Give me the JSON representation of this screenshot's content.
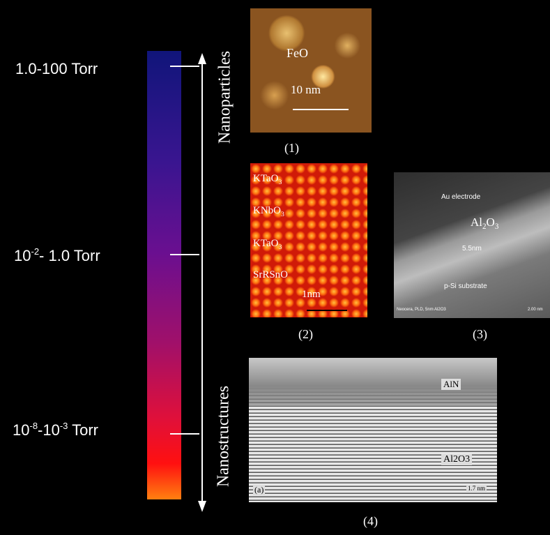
{
  "pressure_labels": [
    [
      "1.0-100 Torr"
    ],
    [
      "10",
      "-2",
      "- 1.0 Torr"
    ],
    [
      "10",
      "-8",
      "-10",
      "-3",
      " Torr"
    ]
  ],
  "regimes": {
    "top": "Nanoparticles",
    "bottom": "Nanostructures"
  },
  "images": [
    {
      "caption": "(1)",
      "texts": [
        [
          "FeO"
        ],
        [
          "10 nm"
        ]
      ]
    },
    {
      "caption": "(2)",
      "texts": [
        [
          "KTaO",
          "3"
        ],
        [
          "KNbO",
          "3"
        ],
        [
          "KTaO",
          "3"
        ],
        [
          "SrRSnO"
        ],
        [
          "1nm"
        ]
      ]
    },
    {
      "caption": "(3)",
      "texts": [
        [
          "Au electrode"
        ],
        [
          "Al",
          "2",
          "O",
          "3"
        ],
        [
          "5.5nm"
        ],
        [
          "p-Si substrate"
        ],
        [
          "Neocera, PLD, 5nm Al2O3"
        ],
        [
          "2.00 nm"
        ]
      ]
    },
    {
      "caption": "(4)",
      "texts": [
        [
          "AlN"
        ],
        [
          "Al2O3"
        ],
        [
          "(a)"
        ],
        [
          "1.7 nm"
        ]
      ]
    }
  ]
}
